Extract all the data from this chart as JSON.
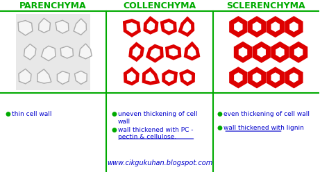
{
  "title_parenchyma": "PARENCHYMA",
  "title_collenchyma": "COLLENCHYMA",
  "title_sclerenchyma": "SCLERENCHYMA",
  "title_color": "#00aa00",
  "text_color": "#0000cc",
  "cell_wall_color_parenchyma": "#aaaaaa",
  "cell_wall_color_collenchyma": "#dd0000",
  "cell_wall_color_sclerenchyma": "#dd0000",
  "cell_fill_parenchyma": "#f5f5f5",
  "cell_fill_collenchyma": "#ffffff",
  "cell_fill_sclerenchyma": "#ffffff",
  "bg_color": "#ffffff",
  "bullet_color": "#00aa00",
  "divider_color": "#00aa00",
  "parenchyma_bullets": [
    "thin cell wall"
  ],
  "collenchyma_bullets": [
    "uneven thickening of cell\nwall",
    "wall thickened with PC -\npectin & cellulose."
  ],
  "sclerenchyma_bullets": [
    "even thickening of cell wall",
    "wall thickened with lignin"
  ],
  "underline_collenchyma": [
    false,
    true
  ],
  "underline_sclerenchyma": [
    false,
    true
  ],
  "footer": "www.cikgukuhan.blogspot.com",
  "footer_color": "#0000cc",
  "lw_parenchyma": 1.0,
  "lw_collenchyma": 3.5,
  "lw_sclerenchyma": 5.0
}
